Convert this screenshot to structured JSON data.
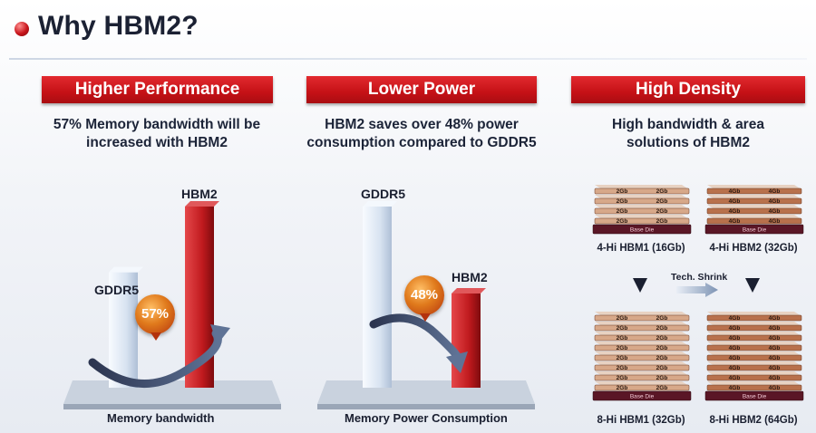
{
  "header": {
    "title": "Why HBM2?"
  },
  "panels": [
    {
      "banner": "Higher Performance",
      "subtitle_line1": "57% Memory bandwidth will be",
      "subtitle_line2": "increased with HBM2",
      "bars": [
        {
          "label": "GDDR5",
          "value": 100,
          "color": "#dbe6f3"
        },
        {
          "label": "HBM2",
          "value": 157,
          "color": "#c91b1f"
        }
      ],
      "badge": "57%",
      "axis_label": "Memory bandwidth"
    },
    {
      "banner": "Lower Power",
      "subtitle_line1": "HBM2 saves over 48% power",
      "subtitle_line2": "consumption compared to GDDR5",
      "bars": [
        {
          "label": "GDDR5",
          "value": 100,
          "color": "#dbe6f3"
        },
        {
          "label": "HBM2",
          "value": 52,
          "color": "#c91b1f"
        }
      ],
      "badge": "48%",
      "axis_label": "Memory Power Consumption"
    },
    {
      "banner": "High Density",
      "subtitle_line1": "High bandwidth & area",
      "subtitle_line2": "solutions of HBM2",
      "stacks": [
        {
          "caption": "4-Hi HBM1 (16Gb)",
          "layers": 4,
          "layer_label": "2Gb",
          "base_label": "Base Die"
        },
        {
          "caption": "4-Hi HBM2 (32Gb)",
          "layers": 4,
          "layer_label": "4Gb",
          "base_label": "Base Die"
        },
        {
          "caption": "8-Hi HBM1 (32Gb)",
          "layers": 8,
          "layer_label": "2Gb",
          "base_label": "Base Die"
        },
        {
          "caption": "8-Hi HBM2 (64Gb)",
          "layers": 8,
          "layer_label": "4Gb",
          "base_label": "Base Die"
        }
      ],
      "shrink_label": "Tech. Shrink"
    }
  ],
  "colors": {
    "accent_red": "#c8151b",
    "bar_light": "#dbe6f3",
    "layer_hbm1": "#d7a889",
    "layer_hbm2": "#b8714c",
    "base_die": "#5a1626"
  }
}
